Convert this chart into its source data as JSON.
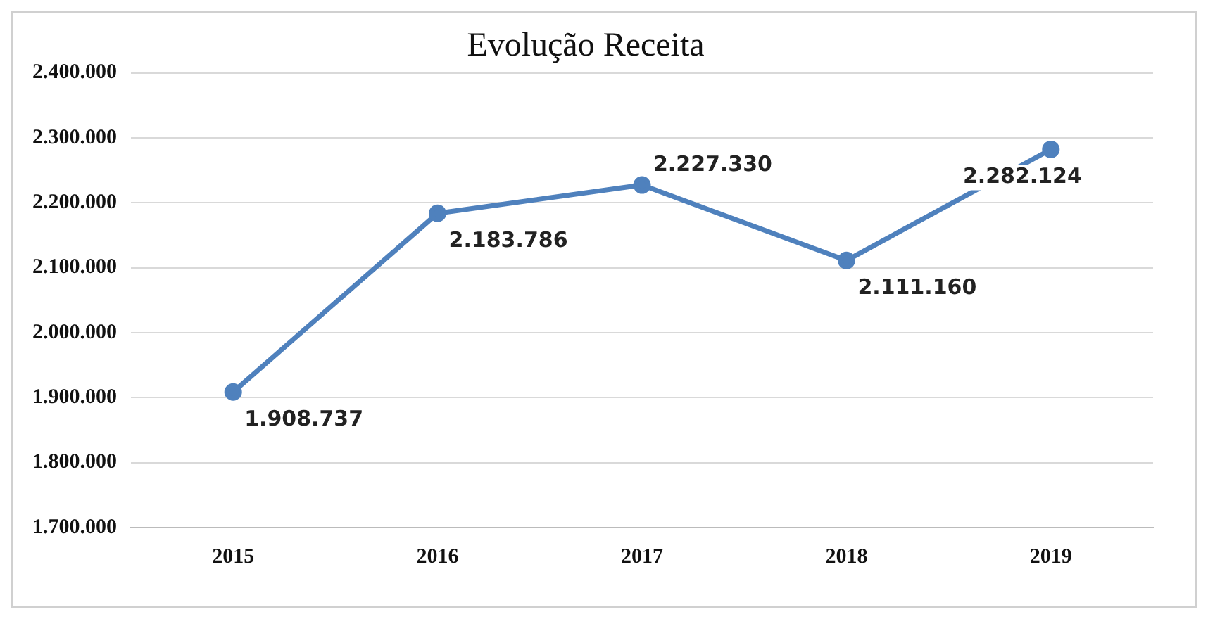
{
  "chart_data": {
    "type": "line",
    "title": "Evolução Receita",
    "categories": [
      "2015",
      "2016",
      "2017",
      "2018",
      "2019"
    ],
    "series": [
      {
        "color": "#4f81bd",
        "values": [
          1908737,
          2183786,
          2227330,
          2111160,
          2282124
        ],
        "value_labels": [
          "1.908.737",
          "2.183.786",
          "2.227.330",
          "2.111.160",
          "2.282.124"
        ]
      }
    ],
    "ylim": [
      1700000,
      2400000
    ],
    "yticks": [
      {
        "value": 1700000,
        "label": "1.700.000"
      },
      {
        "value": 1800000,
        "label": "1.800.000"
      },
      {
        "value": 1900000,
        "label": "1.900.000"
      },
      {
        "value": 2000000,
        "label": "2.000.000"
      },
      {
        "value": 2100000,
        "label": "2.100.000"
      },
      {
        "value": 2200000,
        "label": "2.200.000"
      },
      {
        "value": 2300000,
        "label": "2.300.000"
      },
      {
        "value": 2400000,
        "label": "2.400.000"
      }
    ],
    "grid": "y",
    "legend": false,
    "marker": "circle",
    "line_style": "solid"
  }
}
